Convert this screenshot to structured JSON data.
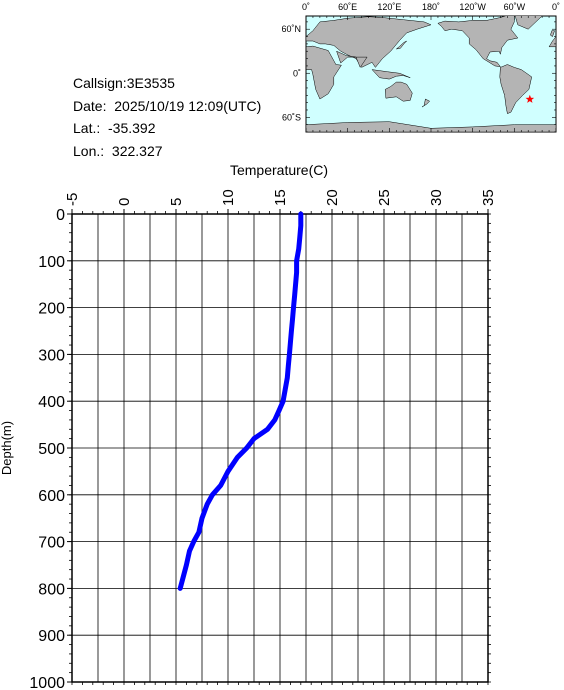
{
  "info": {
    "callsign": "Callsign:3E3535",
    "date": "Date:  2025/10/19 12:09(UTC)",
    "lat": "Lat.:  -35.392",
    "lon": "Lon.:  322.327"
  },
  "map": {
    "lon_ticks": [
      "0˚",
      "60˚E",
      "120˚E",
      "180˚",
      "120˚W",
      "60˚W",
      "0˚"
    ],
    "lat_ticks": [
      "60˚N",
      "0˚",
      "60˚S"
    ],
    "marker": {
      "lat": -35.392,
      "lon": 322.327,
      "color": "#ff0000",
      "icon": "star-icon"
    },
    "ocean_color": "#d0ffff",
    "land_color": "#b4b4b4"
  },
  "chart_data": {
    "type": "line",
    "title": "",
    "xlabel": "Temperature(C)",
    "ylabel": "Depth(m)",
    "xlim": [
      -5,
      35
    ],
    "ylim": [
      0,
      1000
    ],
    "y_inverted": true,
    "x_ticks": [
      "-5",
      "0",
      "5",
      "10",
      "15",
      "20",
      "25",
      "30",
      "35"
    ],
    "y_ticks": [
      "0",
      "100",
      "200",
      "300",
      "400",
      "500",
      "600",
      "700",
      "800",
      "900",
      "1000"
    ],
    "grid": true,
    "line_color": "#0000ff",
    "series": [
      {
        "temperature": [
          17.0,
          17.0,
          16.9,
          16.8,
          16.6,
          16.6,
          16.5,
          16.4,
          16.3,
          16.2,
          16.1,
          16.0,
          15.9,
          15.8,
          15.7,
          15.5,
          15.3,
          14.9,
          14.5,
          13.8,
          12.5,
          11.8,
          10.9,
          10.0,
          9.3,
          8.5,
          8.0,
          7.5,
          7.2,
          6.7,
          6.3,
          6.0,
          5.7,
          5.4
        ],
        "depth": [
          0,
          25,
          50,
          75,
          100,
          125,
          150,
          175,
          200,
          225,
          250,
          275,
          300,
          325,
          350,
          375,
          400,
          420,
          440,
          460,
          480,
          500,
          520,
          550,
          580,
          600,
          620,
          650,
          680,
          700,
          720,
          750,
          775,
          800
        ]
      }
    ]
  }
}
